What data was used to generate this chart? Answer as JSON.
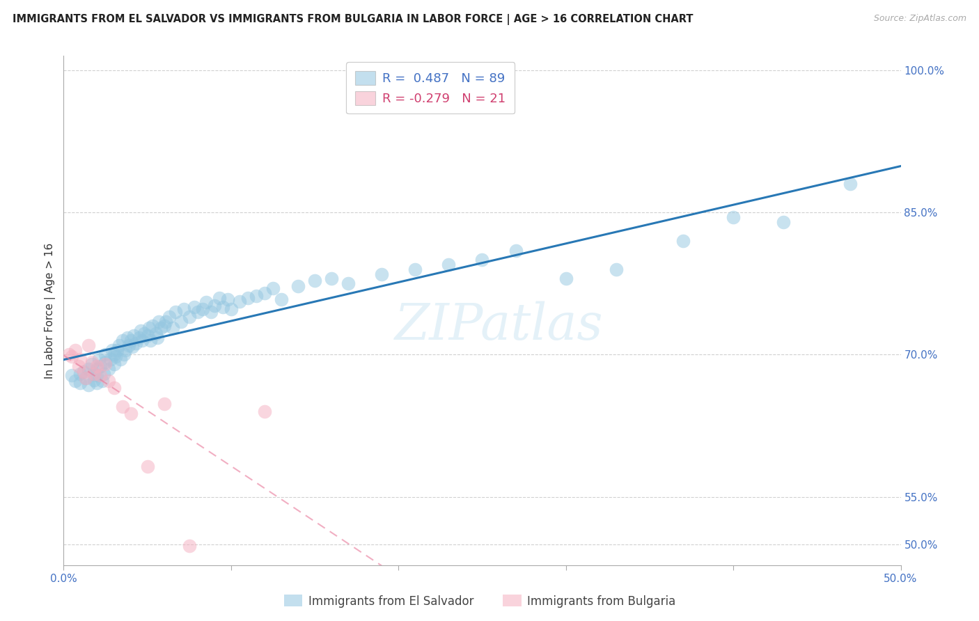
{
  "title": "IMMIGRANTS FROM EL SALVADOR VS IMMIGRANTS FROM BULGARIA IN LABOR FORCE | AGE > 16 CORRELATION CHART",
  "source": "Source: ZipAtlas.com",
  "ylabel": "In Labor Force | Age > 16",
  "x_min": 0.0,
  "x_max": 0.5,
  "y_min": 0.478,
  "y_max": 1.015,
  "x_ticks": [
    0.0,
    0.1,
    0.2,
    0.3,
    0.4,
    0.5
  ],
  "x_tick_labels": [
    "0.0%",
    "",
    "",
    "",
    "",
    "50.0%"
  ],
  "y_tick_positions": [
    0.5,
    0.55,
    0.7,
    0.85,
    1.0
  ],
  "y_tick_labels": [
    "50.0%",
    "55.0%",
    "70.0%",
    "85.0%",
    "100.0%"
  ],
  "legend_label_blue": "Immigrants from El Salvador",
  "legend_label_pink": "Immigrants from Bulgaria",
  "r_blue": "0.487",
  "n_blue": "89",
  "r_pink": "-0.279",
  "n_pink": "21",
  "blue_color": "#93c6e0",
  "pink_color": "#f5afc0",
  "blue_line_color": "#2878b5",
  "pink_line_color": "#e8799a",
  "watermark": "ZIPatlas",
  "background_color": "#ffffff",
  "grid_color": "#d0d0d0",
  "axis_label_color": "#4472C4",
  "title_color": "#222222",
  "blue_scatter_x": [
    0.005,
    0.007,
    0.01,
    0.01,
    0.012,
    0.013,
    0.015,
    0.015,
    0.017,
    0.018,
    0.018,
    0.02,
    0.02,
    0.02,
    0.021,
    0.022,
    0.023,
    0.024,
    0.025,
    0.025,
    0.027,
    0.028,
    0.029,
    0.03,
    0.03,
    0.031,
    0.032,
    0.033,
    0.034,
    0.035,
    0.036,
    0.037,
    0.038,
    0.039,
    0.04,
    0.041,
    0.042,
    0.043,
    0.045,
    0.046,
    0.047,
    0.048,
    0.05,
    0.051,
    0.052,
    0.053,
    0.055,
    0.056,
    0.057,
    0.058,
    0.06,
    0.061,
    0.063,
    0.065,
    0.067,
    0.07,
    0.072,
    0.075,
    0.078,
    0.08,
    0.083,
    0.085,
    0.088,
    0.09,
    0.093,
    0.095,
    0.098,
    0.1,
    0.105,
    0.11,
    0.115,
    0.12,
    0.125,
    0.13,
    0.14,
    0.15,
    0.16,
    0.17,
    0.19,
    0.21,
    0.23,
    0.25,
    0.27,
    0.3,
    0.33,
    0.37,
    0.4,
    0.43,
    0.47
  ],
  "blue_scatter_y": [
    0.678,
    0.672,
    0.68,
    0.67,
    0.682,
    0.675,
    0.685,
    0.668,
    0.69,
    0.673,
    0.68,
    0.67,
    0.678,
    0.685,
    0.695,
    0.688,
    0.672,
    0.68,
    0.692,
    0.7,
    0.685,
    0.695,
    0.705,
    0.69,
    0.7,
    0.698,
    0.705,
    0.71,
    0.695,
    0.715,
    0.7,
    0.705,
    0.718,
    0.71,
    0.715,
    0.708,
    0.72,
    0.712,
    0.718,
    0.725,
    0.715,
    0.722,
    0.72,
    0.728,
    0.715,
    0.73,
    0.722,
    0.718,
    0.735,
    0.728,
    0.73,
    0.735,
    0.74,
    0.728,
    0.745,
    0.735,
    0.748,
    0.74,
    0.75,
    0.745,
    0.748,
    0.755,
    0.745,
    0.752,
    0.76,
    0.75,
    0.758,
    0.748,
    0.756,
    0.76,
    0.762,
    0.765,
    0.77,
    0.758,
    0.772,
    0.778,
    0.78,
    0.775,
    0.785,
    0.79,
    0.795,
    0.8,
    0.81,
    0.78,
    0.79,
    0.82,
    0.845,
    0.84,
    0.88
  ],
  "pink_scatter_x": [
    0.003,
    0.005,
    0.007,
    0.009,
    0.01,
    0.012,
    0.013,
    0.015,
    0.017,
    0.018,
    0.02,
    0.022,
    0.025,
    0.027,
    0.03,
    0.035,
    0.04,
    0.05,
    0.06,
    0.075,
    0.12
  ],
  "pink_scatter_y": [
    0.7,
    0.698,
    0.705,
    0.688,
    0.695,
    0.682,
    0.675,
    0.71,
    0.692,
    0.68,
    0.688,
    0.678,
    0.69,
    0.672,
    0.665,
    0.645,
    0.638,
    0.582,
    0.648,
    0.498,
    0.64
  ]
}
